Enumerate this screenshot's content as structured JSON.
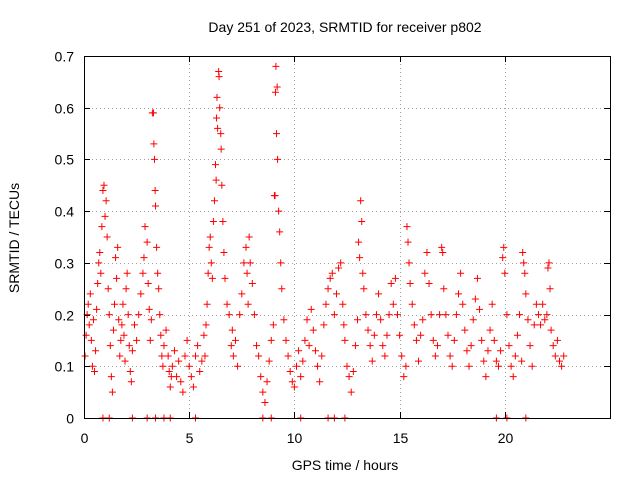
{
  "chart_data": {
    "type": "scatter",
    "title": "Day 251 of 2023, SRMTID for receiver p802",
    "xlabel": "GPS time / hours",
    "ylabel": "SRMTID / TECUs",
    "xlim": [
      0,
      25
    ],
    "ylim": [
      0,
      0.7
    ],
    "xticks": [
      0,
      5,
      10,
      15,
      20
    ],
    "xtick_labels": [
      "0",
      "5",
      "10",
      "15",
      "20"
    ],
    "yticks": [
      0,
      0.1,
      0.2,
      0.3,
      0.4,
      0.5,
      0.6,
      0.7
    ],
    "ytick_labels": [
      "0",
      "0.1",
      "0.2",
      "0.3",
      "0.4",
      "0.5",
      "0.6",
      "0.7"
    ],
    "grid": true,
    "marker": "plus",
    "color": "#ff0000",
    "series": [
      {
        "name": "SRMTID",
        "points": [
          [
            0.05,
            0.12
          ],
          [
            0.1,
            0.16
          ],
          [
            0.15,
            0.2
          ],
          [
            0.2,
            0.22
          ],
          [
            0.25,
            0.18
          ],
          [
            0.3,
            0.24
          ],
          [
            0.35,
            0.15
          ],
          [
            0.4,
            0.1
          ],
          [
            0.45,
            0.19
          ],
          [
            0.5,
            0.09
          ],
          [
            0.55,
            0.13
          ],
          [
            0.6,
            0.21
          ],
          [
            0.65,
            0.26
          ],
          [
            0.7,
            0.3
          ],
          [
            0.75,
            0.32
          ],
          [
            0.8,
            0.28
          ],
          [
            0.85,
            0.37
          ],
          [
            0.9,
            0.44
          ],
          [
            0.95,
            0.45
          ],
          [
            1.0,
            0.39
          ],
          [
            1.05,
            0.42
          ],
          [
            1.1,
            0.35
          ],
          [
            1.15,
            0.25
          ],
          [
            1.2,
            0.2
          ],
          [
            1.25,
            0.14
          ],
          [
            1.3,
            0.08
          ],
          [
            1.35,
            0.05
          ],
          [
            1.4,
            0.17
          ],
          [
            1.45,
            0.22
          ],
          [
            1.5,
            0.31
          ],
          [
            1.55,
            0.27
          ],
          [
            1.6,
            0.33
          ],
          [
            1.65,
            0.19
          ],
          [
            1.7,
            0.12
          ],
          [
            1.75,
            0.15
          ],
          [
            1.8,
            0.18
          ],
          [
            1.85,
            0.22
          ],
          [
            1.9,
            0.16
          ],
          [
            1.95,
            0.11
          ],
          [
            2.0,
            0.25
          ],
          [
            2.05,
            0.28
          ],
          [
            2.1,
            0.2
          ],
          [
            2.15,
            0.14
          ],
          [
            2.2,
            0.09
          ],
          [
            2.25,
            0.07
          ],
          [
            2.3,
            0.13
          ],
          [
            2.4,
            0.18
          ],
          [
            2.5,
            0.15
          ],
          [
            2.6,
            0.2
          ],
          [
            2.7,
            0.24
          ],
          [
            2.8,
            0.28
          ],
          [
            2.85,
            0.31
          ],
          [
            2.9,
            0.37
          ],
          [
            3.0,
            0.34
          ],
          [
            3.05,
            0.26
          ],
          [
            3.1,
            0.21
          ],
          [
            3.15,
            0.15
          ],
          [
            3.2,
            0.19
          ],
          [
            3.25,
            0.59
          ],
          [
            3.3,
            0.59
          ],
          [
            3.32,
            0.53
          ],
          [
            3.35,
            0.5
          ],
          [
            3.38,
            0.44
          ],
          [
            3.4,
            0.41
          ],
          [
            3.45,
            0.33
          ],
          [
            3.5,
            0.28
          ],
          [
            3.55,
            0.25
          ],
          [
            3.6,
            0.2
          ],
          [
            3.65,
            0.16
          ],
          [
            3.7,
            0.12
          ],
          [
            3.75,
            0.1
          ],
          [
            3.8,
            0.14
          ],
          [
            3.9,
            0.17
          ],
          [
            4.0,
            0.12
          ],
          [
            4.05,
            0.09
          ],
          [
            4.1,
            0.06
          ],
          [
            4.15,
            0.08
          ],
          [
            4.2,
            0.1
          ],
          [
            4.3,
            0.13
          ],
          [
            4.4,
            0.08
          ],
          [
            4.5,
            0.11
          ],
          [
            4.6,
            0.07
          ],
          [
            4.7,
            0.05
          ],
          [
            4.8,
            0.12
          ],
          [
            4.9,
            0.15
          ],
          [
            5.0,
            0.1
          ],
          [
            5.1,
            0.08
          ],
          [
            5.2,
            0.06
          ],
          [
            5.3,
            0.12
          ],
          [
            5.4,
            0.14
          ],
          [
            5.5,
            0.09
          ],
          [
            5.6,
            0.11
          ],
          [
            5.7,
            0.16
          ],
          [
            5.75,
            0.12
          ],
          [
            5.8,
            0.18
          ],
          [
            5.85,
            0.22
          ],
          [
            5.9,
            0.28
          ],
          [
            5.95,
            0.33
          ],
          [
            6.0,
            0.35
          ],
          [
            6.05,
            0.3
          ],
          [
            6.1,
            0.27
          ],
          [
            6.15,
            0.38
          ],
          [
            6.2,
            0.42
          ],
          [
            6.25,
            0.49
          ],
          [
            6.28,
            0.46
          ],
          [
            6.3,
            0.58
          ],
          [
            6.32,
            0.62
          ],
          [
            6.35,
            0.56
          ],
          [
            6.4,
            0.67
          ],
          [
            6.42,
            0.66
          ],
          [
            6.45,
            0.6
          ],
          [
            6.5,
            0.55
          ],
          [
            6.52,
            0.52
          ],
          [
            6.55,
            0.45
          ],
          [
            6.6,
            0.38
          ],
          [
            6.65,
            0.32
          ],
          [
            6.7,
            0.27
          ],
          [
            6.8,
            0.22
          ],
          [
            6.9,
            0.2
          ],
          [
            7.0,
            0.14
          ],
          [
            7.05,
            0.17
          ],
          [
            7.1,
            0.12
          ],
          [
            7.2,
            0.15
          ],
          [
            7.3,
            0.1
          ],
          [
            7.4,
            0.2
          ],
          [
            7.5,
            0.24
          ],
          [
            7.6,
            0.3
          ],
          [
            7.7,
            0.33
          ],
          [
            7.75,
            0.28
          ],
          [
            7.8,
            0.22
          ],
          [
            7.85,
            0.35
          ],
          [
            7.9,
            0.3
          ],
          [
            8.0,
            0.26
          ],
          [
            8.1,
            0.2
          ],
          [
            8.2,
            0.14
          ],
          [
            8.3,
            0.12
          ],
          [
            8.4,
            0.08
          ],
          [
            8.5,
            0.05
          ],
          [
            8.6,
            0.03
          ],
          [
            8.7,
            0.07
          ],
          [
            8.8,
            0.11
          ],
          [
            8.9,
            0.15
          ],
          [
            9.0,
            0.18
          ],
          [
            9.05,
            0.43
          ],
          [
            9.08,
            0.43
          ],
          [
            9.1,
            0.63
          ],
          [
            9.12,
            0.68
          ],
          [
            9.15,
            0.55
          ],
          [
            9.18,
            0.64
          ],
          [
            9.2,
            0.5
          ],
          [
            9.25,
            0.4
          ],
          [
            9.3,
            0.36
          ],
          [
            9.35,
            0.3
          ],
          [
            9.4,
            0.25
          ],
          [
            9.5,
            0.19
          ],
          [
            9.6,
            0.15
          ],
          [
            9.7,
            0.12
          ],
          [
            9.8,
            0.09
          ],
          [
            9.9,
            0.07
          ],
          [
            10.0,
            0.06
          ],
          [
            10.1,
            0.1
          ],
          [
            10.2,
            0.13
          ],
          [
            10.3,
            0.08
          ],
          [
            10.4,
            0.11
          ],
          [
            10.5,
            0.15
          ],
          [
            10.6,
            0.19
          ],
          [
            10.7,
            0.14
          ],
          [
            10.8,
            0.21
          ],
          [
            10.9,
            0.17
          ],
          [
            11.0,
            0.13
          ],
          [
            11.1,
            0.1
          ],
          [
            11.2,
            0.07
          ],
          [
            11.3,
            0.12
          ],
          [
            11.4,
            0.18
          ],
          [
            11.5,
            0.22
          ],
          [
            11.6,
            0.25
          ],
          [
            11.7,
            0.27
          ],
          [
            11.8,
            0.28
          ],
          [
            11.9,
            0.2
          ],
          [
            12.0,
            0.24
          ],
          [
            12.1,
            0.29
          ],
          [
            12.2,
            0.3
          ],
          [
            12.3,
            0.22
          ],
          [
            12.35,
            0.18
          ],
          [
            12.4,
            0.15
          ],
          [
            12.5,
            0.1
          ],
          [
            12.6,
            0.08
          ],
          [
            12.7,
            0.05
          ],
          [
            12.8,
            0.09
          ],
          [
            12.9,
            0.14
          ],
          [
            13.0,
            0.19
          ],
          [
            13.05,
            0.34
          ],
          [
            13.1,
            0.31
          ],
          [
            13.15,
            0.42
          ],
          [
            13.2,
            0.38
          ],
          [
            13.25,
            0.28
          ],
          [
            13.3,
            0.25
          ],
          [
            13.4,
            0.2
          ],
          [
            13.5,
            0.17
          ],
          [
            13.6,
            0.14
          ],
          [
            13.7,
            0.11
          ],
          [
            13.8,
            0.16
          ],
          [
            13.9,
            0.2
          ],
          [
            14.0,
            0.24
          ],
          [
            14.1,
            0.19
          ],
          [
            14.2,
            0.14
          ],
          [
            14.3,
            0.12
          ],
          [
            14.4,
            0.16
          ],
          [
            14.5,
            0.2
          ],
          [
            14.6,
            0.26
          ],
          [
            14.7,
            0.22
          ],
          [
            14.8,
            0.27
          ],
          [
            14.9,
            0.2
          ],
          [
            15.0,
            0.16
          ],
          [
            15.1,
            0.12
          ],
          [
            15.2,
            0.08
          ],
          [
            15.3,
            0.1
          ],
          [
            15.35,
            0.37
          ],
          [
            15.4,
            0.34
          ],
          [
            15.45,
            0.3
          ],
          [
            15.5,
            0.26
          ],
          [
            15.6,
            0.22
          ],
          [
            15.7,
            0.18
          ],
          [
            15.8,
            0.15
          ],
          [
            15.9,
            0.11
          ],
          [
            16.0,
            0.16
          ],
          [
            16.1,
            0.19
          ],
          [
            16.2,
            0.28
          ],
          [
            16.3,
            0.32
          ],
          [
            16.4,
            0.26
          ],
          [
            16.5,
            0.2
          ],
          [
            16.6,
            0.15
          ],
          [
            16.7,
            0.12
          ],
          [
            16.8,
            0.14
          ],
          [
            16.9,
            0.2
          ],
          [
            17.0,
            0.33
          ],
          [
            17.05,
            0.32
          ],
          [
            17.1,
            0.25
          ],
          [
            17.2,
            0.2
          ],
          [
            17.3,
            0.16
          ],
          [
            17.4,
            0.12
          ],
          [
            17.5,
            0.1
          ],
          [
            17.6,
            0.15
          ],
          [
            17.7,
            0.2
          ],
          [
            17.8,
            0.24
          ],
          [
            17.9,
            0.28
          ],
          [
            18.0,
            0.22
          ],
          [
            18.1,
            0.17
          ],
          [
            18.2,
            0.13
          ],
          [
            18.3,
            0.1
          ],
          [
            18.4,
            0.14
          ],
          [
            18.5,
            0.19
          ],
          [
            18.6,
            0.23
          ],
          [
            18.7,
            0.27
          ],
          [
            18.8,
            0.21
          ],
          [
            18.9,
            0.15
          ],
          [
            19.0,
            0.11
          ],
          [
            19.1,
            0.08
          ],
          [
            19.2,
            0.13
          ],
          [
            19.3,
            0.17
          ],
          [
            19.4,
            0.22
          ],
          [
            19.5,
            0.15
          ],
          [
            19.6,
            0.11
          ],
          [
            19.7,
            0.1
          ],
          [
            19.8,
            0.13
          ],
          [
            19.9,
            0.31
          ],
          [
            19.95,
            0.33
          ],
          [
            20.0,
            0.28
          ],
          [
            20.1,
            0.2
          ],
          [
            20.2,
            0.14
          ],
          [
            20.3,
            0.1
          ],
          [
            20.4,
            0.08
          ],
          [
            20.5,
            0.12
          ],
          [
            20.6,
            0.16
          ],
          [
            20.7,
            0.2
          ],
          [
            20.8,
            0.11
          ],
          [
            20.85,
            0.32
          ],
          [
            20.9,
            0.3
          ],
          [
            20.95,
            0.28
          ],
          [
            21.0,
            0.24
          ],
          [
            21.1,
            0.19
          ],
          [
            21.2,
            0.14
          ],
          [
            21.3,
            0.1
          ],
          [
            21.4,
            0.18
          ],
          [
            21.5,
            0.22
          ],
          [
            21.6,
            0.2
          ],
          [
            21.7,
            0.18
          ],
          [
            21.8,
            0.22
          ],
          [
            21.9,
            0.19
          ],
          [
            22.0,
            0.2
          ],
          [
            22.05,
            0.29
          ],
          [
            22.1,
            0.3
          ],
          [
            22.15,
            0.25
          ],
          [
            22.2,
            0.17
          ],
          [
            22.3,
            0.14
          ],
          [
            22.4,
            0.12
          ],
          [
            22.5,
            0.15
          ],
          [
            22.6,
            0.11
          ],
          [
            22.7,
            0.1
          ],
          [
            22.8,
            0.12
          ]
        ]
      }
    ],
    "zero_points_x": [
      0.9,
      1.2,
      2.3,
      3.0,
      3.4,
      3.8,
      4.1,
      5.3,
      8.5,
      8.9,
      10.3,
      11.6,
      11.9,
      12.4,
      19.6,
      20.1,
      21.0
    ]
  }
}
